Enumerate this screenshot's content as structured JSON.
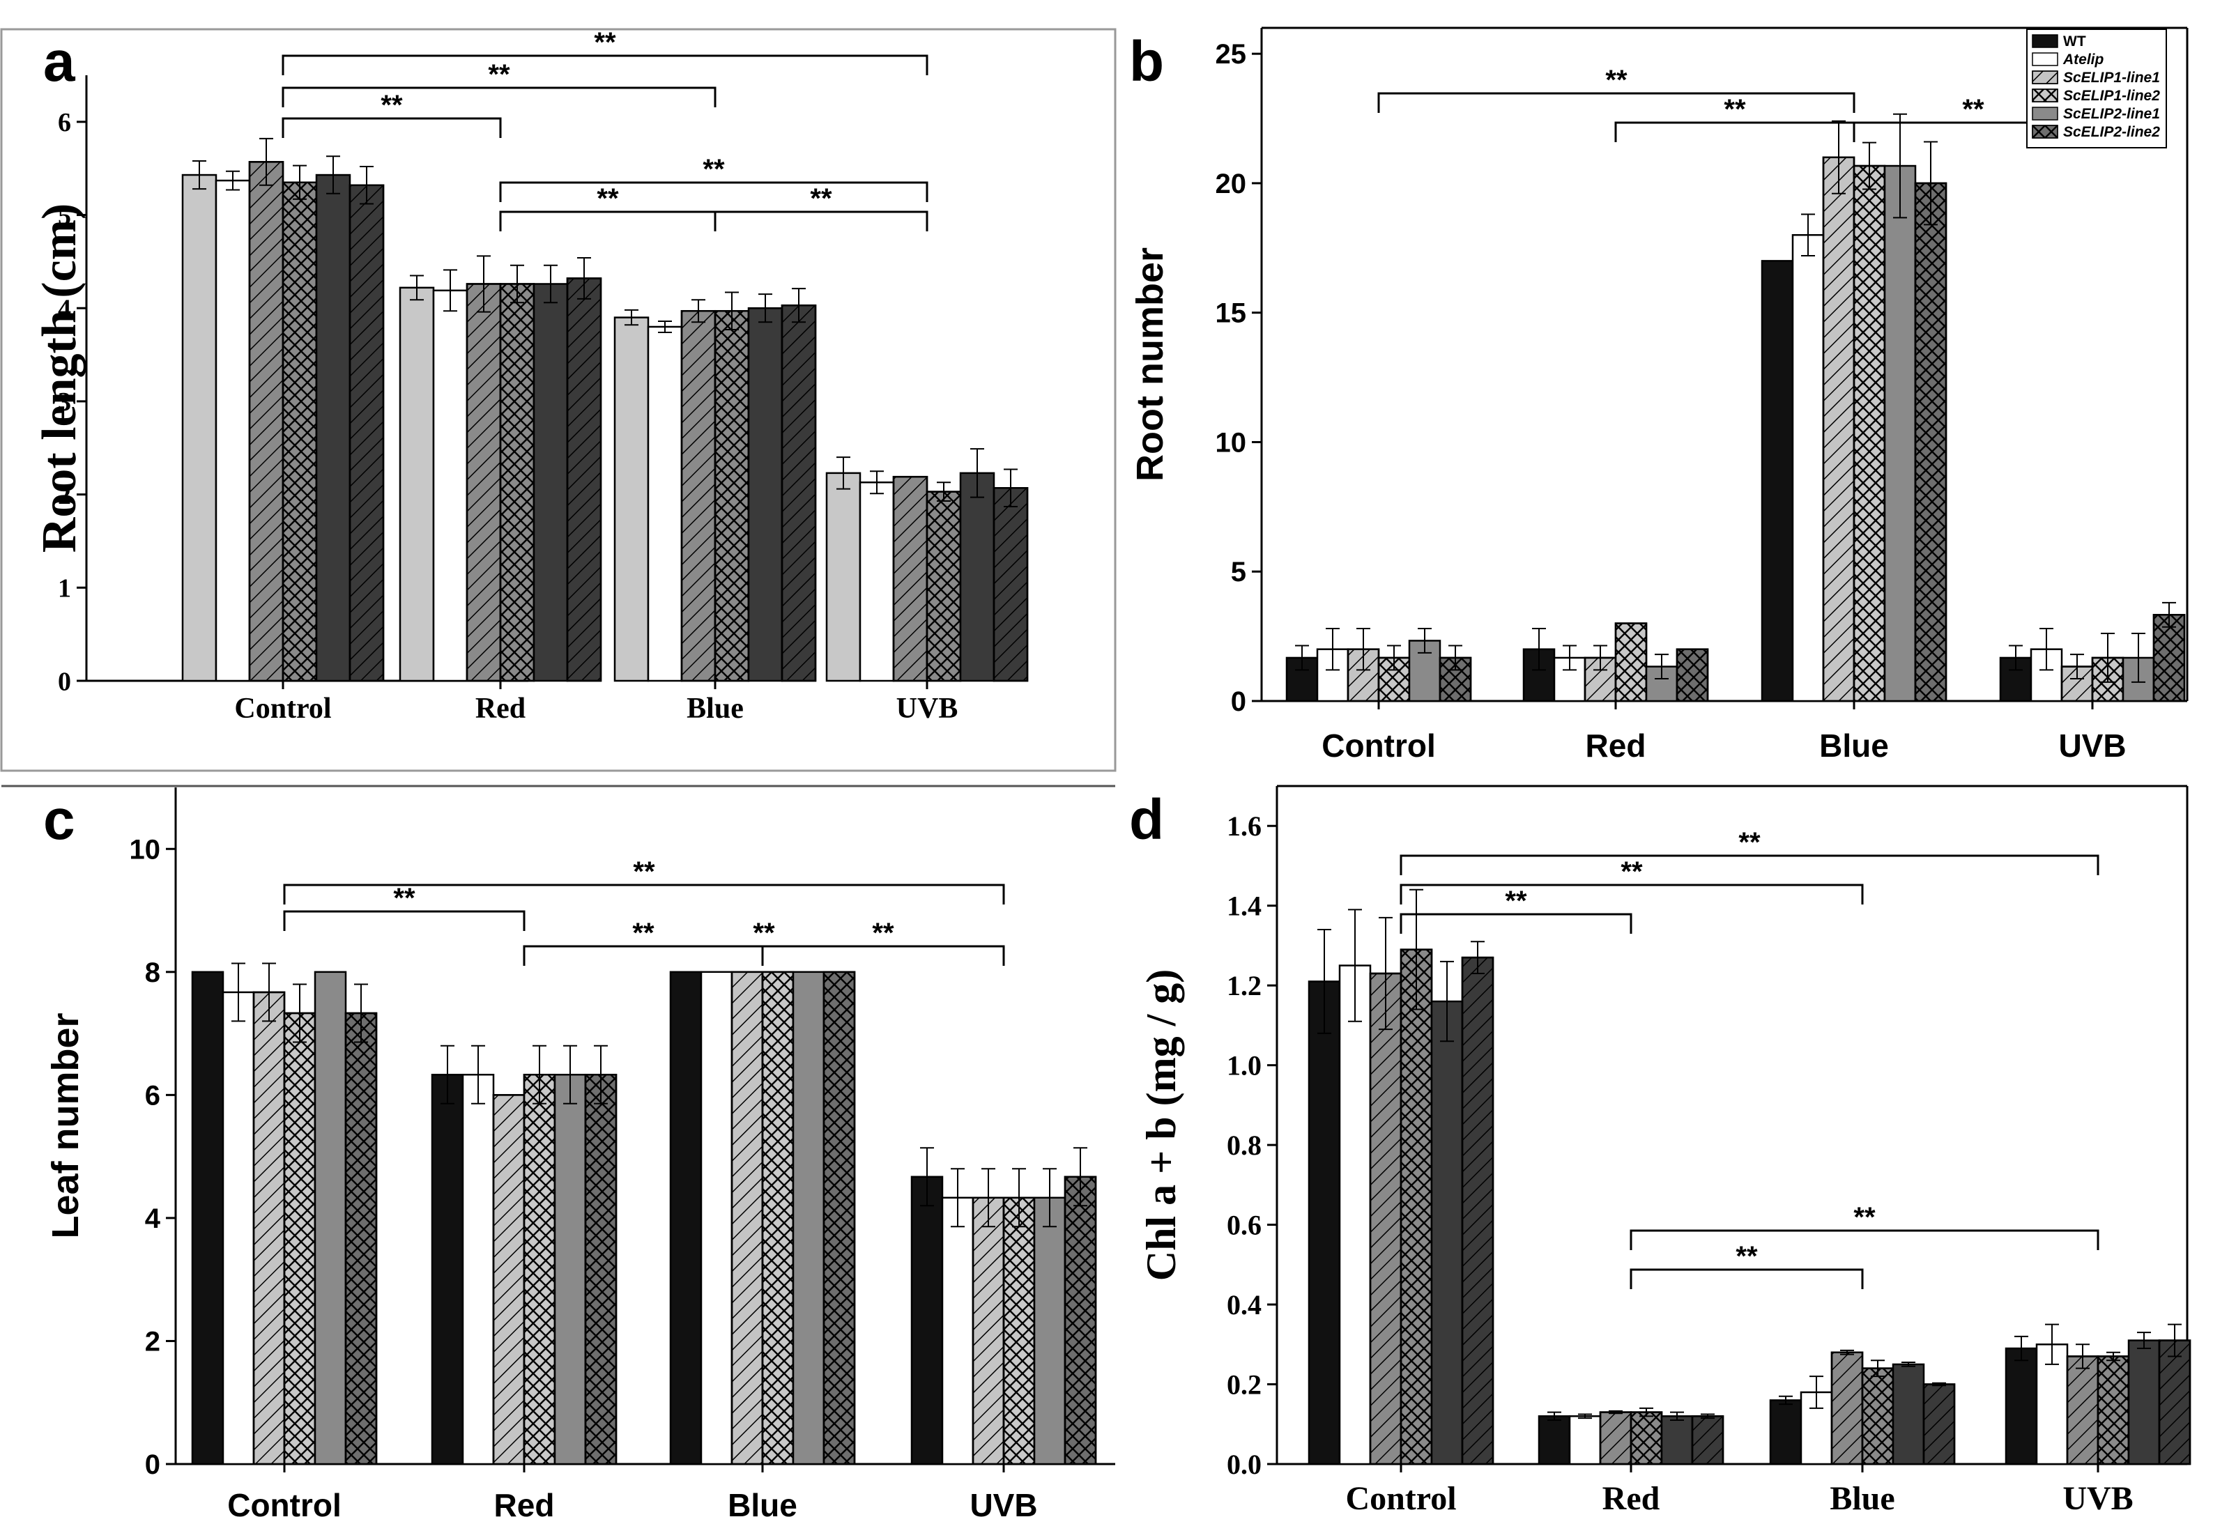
{
  "figure": {
    "patterns": {
      "gray": {
        "fill": "#c8c8c8",
        "hatch": "none"
      },
      "white": {
        "fill": "#ffffff",
        "hatch": "none"
      },
      "fwd": {
        "fill": "#8a8a8a",
        "hatch": "fwd"
      },
      "fwdLight": {
        "fill": "#c4c4c4",
        "hatch": "fwd"
      },
      "cross": {
        "fill": "#8a8a8a",
        "hatch": "cross"
      },
      "crossLight": {
        "fill": "#c8c8c8",
        "hatch": "cross"
      },
      "dark": {
        "fill": "#3a3a3a",
        "hatch": "none"
      },
      "darkFwd": {
        "fill": "#3a3a3a",
        "hatch": "fwd"
      },
      "black": {
        "fill": "#111111",
        "hatch": "none"
      },
      "crossDark": {
        "fill": "#6e6e6e",
        "hatch": "cross"
      },
      "medium": {
        "fill": "#8a8a8a",
        "hatch": "none"
      }
    }
  },
  "chart_data": [
    {
      "panel": "a",
      "type": "bar",
      "ylabel": "Root length (cm)",
      "ylim": [
        0,
        6.5
      ],
      "yticks": [
        0,
        1,
        2,
        3,
        4,
        5,
        6
      ],
      "ytick_labels": [
        "0",
        "1",
        "2",
        "3",
        "4",
        "5",
        "6"
      ],
      "categories": [
        "Control",
        "Red",
        "Blue",
        "UVB"
      ],
      "series": [
        {
          "pattern": "gray",
          "values": [
            5.43,
            4.22,
            3.9,
            2.23
          ],
          "errors": [
            0.15,
            0.13,
            0.08,
            0.17
          ]
        },
        {
          "pattern": "white",
          "values": [
            5.37,
            4.19,
            3.8,
            2.13
          ],
          "errors": [
            0.1,
            0.22,
            0.06,
            0.12
          ]
        },
        {
          "pattern": "fwd",
          "values": [
            5.57,
            4.26,
            3.97,
            2.19
          ],
          "errors": [
            0.25,
            0.3,
            0.12,
            0.0
          ]
        },
        {
          "pattern": "cross",
          "values": [
            5.35,
            4.26,
            3.97,
            2.03
          ],
          "errors": [
            0.18,
            0.2,
            0.2,
            0.1
          ]
        },
        {
          "pattern": "dark",
          "values": [
            5.43,
            4.26,
            4.0,
            2.23
          ],
          "errors": [
            0.2,
            0.2,
            0.15,
            0.26
          ]
        },
        {
          "pattern": "darkFwd",
          "values": [
            5.32,
            4.32,
            4.03,
            2.07
          ],
          "errors": [
            0.2,
            0.22,
            0.18,
            0.2
          ]
        }
      ],
      "significance": [
        {
          "from": 0,
          "to": 3,
          "label": "**"
        },
        {
          "from": 0,
          "to": 2,
          "label": "**"
        },
        {
          "from": 0,
          "to": 1,
          "label": "**"
        },
        {
          "from": 1,
          "to": 3,
          "label": "**"
        },
        {
          "from": 1,
          "to": 2,
          "label": "**"
        },
        {
          "from": 2,
          "to": 3,
          "label": "**"
        }
      ]
    },
    {
      "panel": "b",
      "type": "bar",
      "ylabel": "Root number",
      "ylim": [
        0,
        26
      ],
      "yticks": [
        0,
        5,
        10,
        15,
        20,
        25
      ],
      "ytick_labels": [
        "0",
        "5",
        "10",
        "15",
        "20",
        "25"
      ],
      "categories": [
        "Control",
        "Red",
        "Blue",
        "UVB"
      ],
      "legend": [
        "WT",
        "Atelip",
        "ScELIP1-line1",
        "ScELIP1-line2",
        "ScELIP2-line1",
        "ScELIP2-line2"
      ],
      "series": [
        {
          "name": "WT",
          "pattern": "black",
          "values": [
            1.67,
            2.0,
            17.0,
            1.67
          ],
          "errors": [
            0.47,
            0.8,
            0.0,
            0.47
          ]
        },
        {
          "name": "Atelip",
          "pattern": "white",
          "values": [
            2.0,
            1.67,
            18.0,
            2.0
          ],
          "errors": [
            0.8,
            0.47,
            0.8,
            0.8
          ]
        },
        {
          "name": "ScELIP1-line1",
          "pattern": "fwdLight",
          "values": [
            2.0,
            1.67,
            21.0,
            1.33
          ],
          "errors": [
            0.8,
            0.47,
            1.4,
            0.47
          ]
        },
        {
          "name": "ScELIP1-line2",
          "pattern": "crossLight",
          "values": [
            1.67,
            3.0,
            20.67,
            1.67
          ],
          "errors": [
            0.47,
            0.0,
            0.9,
            0.94
          ]
        },
        {
          "name": "ScELIP2-line1",
          "pattern": "medium",
          "values": [
            2.33,
            1.33,
            20.67,
            1.67
          ],
          "errors": [
            0.47,
            0.47,
            2.0,
            0.94
          ]
        },
        {
          "name": "ScELIP2-line2",
          "pattern": "crossDark",
          "values": [
            1.67,
            2.0,
            20.0,
            3.33
          ],
          "errors": [
            0.47,
            0.0,
            1.6,
            0.47
          ]
        }
      ],
      "significance": [
        {
          "from": 0,
          "to": 2,
          "label": "**"
        },
        {
          "from": 1,
          "to": 2,
          "label": "**"
        },
        {
          "from": 2,
          "to": 3,
          "label": "**"
        }
      ]
    },
    {
      "panel": "c",
      "type": "bar",
      "ylabel": "Leaf number",
      "ylim": [
        0,
        11
      ],
      "yticks": [
        0,
        2,
        4,
        6,
        8,
        10
      ],
      "ytick_labels": [
        "0",
        "2",
        "4",
        "6",
        "8",
        "10"
      ],
      "categories": [
        "Control",
        "Red",
        "Blue",
        "UVB"
      ],
      "series": [
        {
          "pattern": "black",
          "values": [
            8.0,
            6.33,
            8.0,
            4.67
          ],
          "errors": [
            0.0,
            0.47,
            0.0,
            0.47
          ]
        },
        {
          "pattern": "white",
          "values": [
            7.67,
            6.33,
            8.0,
            4.33
          ],
          "errors": [
            0.47,
            0.47,
            0.0,
            0.47
          ]
        },
        {
          "pattern": "fwdLight",
          "values": [
            7.67,
            6.0,
            8.0,
            4.33
          ],
          "errors": [
            0.47,
            0.0,
            0.0,
            0.47
          ]
        },
        {
          "pattern": "crossLight",
          "values": [
            7.33,
            6.33,
            8.0,
            4.33
          ],
          "errors": [
            0.47,
            0.47,
            0.0,
            0.47
          ]
        },
        {
          "pattern": "medium",
          "values": [
            8.0,
            6.33,
            8.0,
            4.33
          ],
          "errors": [
            0.0,
            0.47,
            0.0,
            0.47
          ]
        },
        {
          "pattern": "crossDark",
          "values": [
            7.33,
            6.33,
            8.0,
            4.67
          ],
          "errors": [
            0.47,
            0.47,
            0.0,
            0.47
          ]
        }
      ],
      "significance": [
        {
          "from": 0,
          "to": 3,
          "label": "**"
        },
        {
          "from": 0,
          "to": 1,
          "label": "**"
        },
        {
          "from": 1,
          "to": 3,
          "label": "**"
        },
        {
          "from": 1,
          "to": 2,
          "label": "**"
        },
        {
          "from": 2,
          "to": 3,
          "label": "**"
        }
      ]
    },
    {
      "panel": "d",
      "type": "bar",
      "ylabel": "Chl a + b (mg / g)",
      "ylim": [
        0,
        1.7
      ],
      "yticks": [
        0,
        0.2,
        0.4,
        0.6,
        0.8,
        1.0,
        1.2,
        1.4,
        1.6
      ],
      "ytick_labels": [
        "0.0",
        "0.2",
        "0.4",
        "0.6",
        "0.8",
        "1.0",
        "1.2",
        "1.4",
        "1.6"
      ],
      "categories": [
        "Control",
        "Red",
        "Blue",
        "UVB"
      ],
      "series": [
        {
          "pattern": "black",
          "values": [
            1.21,
            0.12,
            0.16,
            0.29
          ],
          "errors": [
            0.13,
            0.01,
            0.01,
            0.03
          ]
        },
        {
          "pattern": "white",
          "values": [
            1.25,
            0.12,
            0.18,
            0.3
          ],
          "errors": [
            0.14,
            0.005,
            0.04,
            0.05
          ]
        },
        {
          "pattern": "fwd",
          "values": [
            1.23,
            0.13,
            0.28,
            0.27
          ],
          "errors": [
            0.14,
            0.003,
            0.005,
            0.03
          ]
        },
        {
          "pattern": "cross",
          "values": [
            1.29,
            0.13,
            0.24,
            0.27
          ],
          "errors": [
            0.15,
            0.01,
            0.02,
            0.01
          ]
        },
        {
          "pattern": "dark",
          "values": [
            1.16,
            0.12,
            0.25,
            0.31
          ],
          "errors": [
            0.1,
            0.01,
            0.005,
            0.02
          ]
        },
        {
          "pattern": "darkFwd",
          "values": [
            1.27,
            0.12,
            0.2,
            0.31
          ],
          "errors": [
            0.04,
            0.005,
            0.003,
            0.04
          ]
        }
      ],
      "significance": [
        {
          "from": 0,
          "to": 3,
          "label": "**"
        },
        {
          "from": 0,
          "to": 2,
          "label": "**"
        },
        {
          "from": 0,
          "to": 1,
          "label": "**"
        },
        {
          "from": 1,
          "to": 3,
          "label": "**"
        },
        {
          "from": 1,
          "to": 2,
          "label": "**"
        }
      ]
    }
  ]
}
